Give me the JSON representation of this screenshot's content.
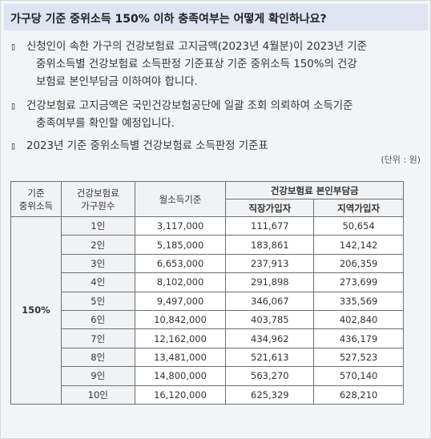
{
  "header": {
    "title": "가구당 기준 중위소득 150% 이하 충족여부는 어떻게 확인하나요?"
  },
  "bullet_glyph": "▯",
  "paragraphs": [
    {
      "lines": [
        "신청인이 속한 가구의 건강보험료 고지금액(2023년 4월분)이 2023년 기준",
        "중위소득별 건강보험료 소득판정 기준표상 기준 중위소득 150%의 건강",
        "보험료 본인부담금 이하여야 합니다."
      ]
    },
    {
      "lines": [
        "건강보험료 고지금액은 국민건강보험공단에 일괄 조회 의뢰하여 소득기준",
        "충족여부를 확인할 예정입니다."
      ]
    },
    {
      "lines": [
        "2023년 기준 중위소득별 건강보험료 소득판정 기준표"
      ]
    }
  ],
  "unit_note": "(단위 : 원)",
  "table": {
    "headers": {
      "col1_line1": "기준",
      "col1_line2": "중위소득",
      "col2_line1": "건강보험료",
      "col2_line2": "가구원수",
      "col3": "월소득기준",
      "group": "건강보험료 본인부담금",
      "sub1": "직장가입자",
      "sub2": "지역가입자"
    },
    "pct_label": "150%",
    "rows": [
      {
        "household": "1인",
        "income": "3,117,000",
        "employee": "111,677",
        "regional": "50,654"
      },
      {
        "household": "2인",
        "income": "5,185,000",
        "employee": "183,861",
        "regional": "142,142"
      },
      {
        "household": "3인",
        "income": "6,653,000",
        "employee": "237,913",
        "regional": "206,359"
      },
      {
        "household": "4인",
        "income": "8,102,000",
        "employee": "291,898",
        "regional": "273,699"
      },
      {
        "household": "5인",
        "income": "9,497,000",
        "employee": "346,067",
        "regional": "335,569"
      },
      {
        "household": "6인",
        "income": "10,842,000",
        "employee": "403,785",
        "regional": "402,840"
      },
      {
        "household": "7인",
        "income": "12,162,000",
        "employee": "434,962",
        "regional": "436,179"
      },
      {
        "household": "8인",
        "income": "13,481,000",
        "employee": "521,613",
        "regional": "527,523"
      },
      {
        "household": "9인",
        "income": "14,800,000",
        "employee": "563,270",
        "regional": "570,140"
      },
      {
        "household": "10인",
        "income": "16,120,000",
        "employee": "625,329",
        "regional": "628,210"
      }
    ]
  }
}
